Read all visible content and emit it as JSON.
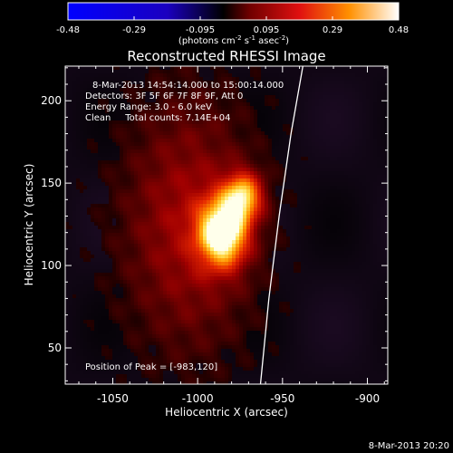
{
  "colorbar": {
    "ticks": [
      "-0.48",
      "-0.29",
      "-0.095",
      "0.095",
      "0.29",
      "0.48"
    ],
    "label_prefix": "(photons cm",
    "label_sup1": "-2",
    "label_mid": " s",
    "label_sup2": "-1",
    "label_end": " asec",
    "label_sup3": "-2",
    "label_close": ")",
    "range": [
      -0.48,
      0.48
    ]
  },
  "title": "Reconstructed RHESSI Image",
  "info": {
    "time": "8-Mar-2013 14:54:14.000 to 15:00:14.000",
    "detectors": "Detectors: 3F 5F 6F 7F 8F 9F, Att 0",
    "energy": "Energy Range: 3.0 - 6.0 keV",
    "clean": "Clean     Total counts: 7.14E+04"
  },
  "peak_text": "Position of Peak = [-983,120]",
  "footer_date": "8-Mar-2013 20:20",
  "chart_data": {
    "type": "heatmap",
    "title": "Reconstructed RHESSI Image",
    "xlabel": "Heliocentric X (arcsec)",
    "ylabel": "Heliocentric Y (arcsec)",
    "xlim": [
      -1078,
      -888
    ],
    "ylim": [
      28,
      221
    ],
    "x_ticks": [
      -1050,
      -1000,
      -950,
      -900
    ],
    "x_tick_labels": [
      "-1050",
      "-1000",
      "-950",
      "-900"
    ],
    "y_ticks": [
      50,
      100,
      150,
      200
    ],
    "y_tick_labels": [
      "50",
      "100",
      "150",
      "200"
    ],
    "peak": [
      -983,
      120
    ],
    "sources": [
      {
        "x": -985,
        "y": 120,
        "amp": 0.48
      },
      {
        "x": -973,
        "y": 142,
        "amp": 0.34
      }
    ],
    "limb_curve": [
      [
        -963,
        28
      ],
      [
        -958,
        80
      ],
      [
        -952,
        130
      ],
      [
        -945,
        180
      ],
      [
        -938,
        221
      ]
    ],
    "colormap_colors": [
      "#0000ff",
      "#000000",
      "#800000",
      "#ff3000",
      "#ffb000",
      "#ffffff"
    ]
  }
}
